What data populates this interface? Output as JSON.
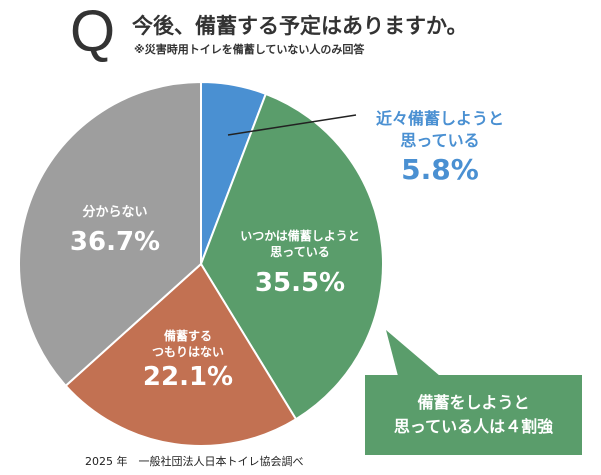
{
  "header": {
    "q": "Q",
    "title": "今後、備蓄する予定はありますか。",
    "note": "※災害時用トイレを備蓄していない人のみ回答"
  },
  "chart_data": {
    "type": "pie",
    "title": "今後、備蓄する予定はありますか。",
    "slices": [
      {
        "label_lines": [
          "近々備蓄しようと",
          "思っている"
        ],
        "value": 5.8,
        "display": "5.8%",
        "color": "#4a90d2"
      },
      {
        "label_lines": [
          "いつかは備蓄しようと",
          "思っている"
        ],
        "value": 35.5,
        "display": "35.5%",
        "color": "#5a9d6b"
      },
      {
        "label_lines": [
          "備蓄する",
          "つもりはない"
        ],
        "value": 22.1,
        "display": "22.1%",
        "color": "#c27152"
      },
      {
        "label_lines": [
          "分からない"
        ],
        "value": 36.7,
        "display": "36.7%",
        "color": "#9e9e9e"
      }
    ],
    "annotation": [
      "備蓄をしようと",
      "思っている人は４割強"
    ]
  },
  "footer": "2025 年　一般社団法人日本トイレ協会調べ"
}
